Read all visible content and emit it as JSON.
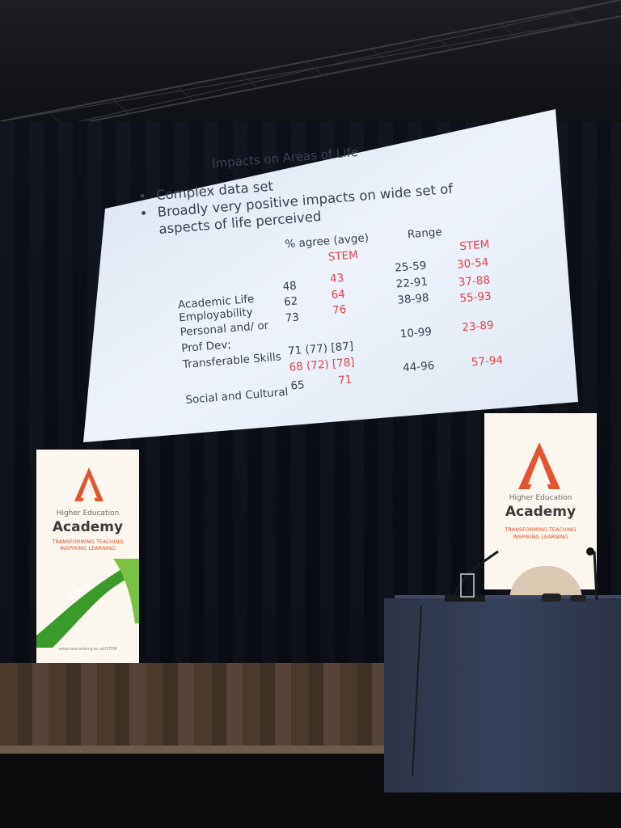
{
  "slide": {
    "title": "Impacts on Areas of Life",
    "bullet_symbol": "•",
    "bullets": [
      "Complex data set",
      "Broadly very positive impacts on wide set of",
      "aspects of life perceived"
    ],
    "col_agree": "% agree (avge)",
    "col_range": "Range",
    "stem_label": "STEM",
    "rows": [
      {
        "label": "Academic Life",
        "avg": "48",
        "stem_avg": "43",
        "range": "25-59",
        "stem_range": "30-54"
      },
      {
        "label": "Employability",
        "avg": "62",
        "stem_avg": "64",
        "range": "22-91",
        "stem_range": "37-88"
      },
      {
        "label": "Personal and/ or",
        "avg": "73",
        "stem_avg": "76",
        "range": "38-98",
        "stem_range": "55-93"
      },
      {
        "label": "Prof Dev;",
        "avg": "",
        "stem_avg": "",
        "range": "",
        "stem_range": ""
      },
      {
        "label": "Transferable Skills",
        "avg": "71 (77) [87]",
        "stem_avg": "68 (72) [78]",
        "range": "10-99",
        "stem_range": "23-89"
      },
      {
        "label": "Social and Cultural",
        "avg": "65",
        "stem_avg": "71",
        "range": "44-96",
        "stem_range": "57-94"
      }
    ]
  },
  "banners": {
    "line1": "Higher Education",
    "line2": "Academy",
    "line3a": "TRANSFORMING TEACHING",
    "line3b": "INSPIRING LEARNING",
    "stem_tag": "STEM",
    "url": "www.heacademy.ac.uk/STEM"
  },
  "colors": {
    "accent_red": "#e2424a",
    "logo_orange": "#e2542f",
    "stem_green": "#3a9a2a"
  }
}
